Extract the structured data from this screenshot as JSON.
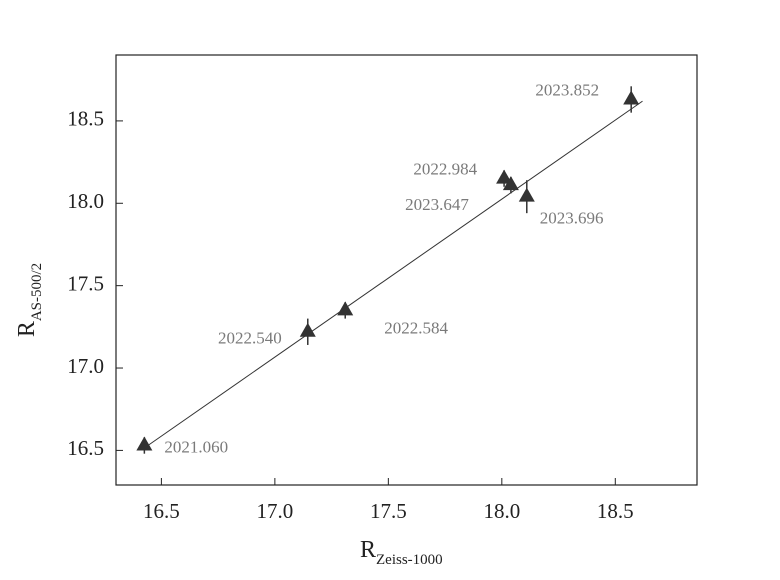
{
  "chart_data": {
    "type": "scatter",
    "xlabel": {
      "main": "R",
      "sub": "Zeiss-1000"
    },
    "ylabel": {
      "main": "R",
      "sub": "AS-500/2"
    },
    "xlim": [
      16.3,
      18.86
    ],
    "ylim": [
      16.29,
      18.9
    ],
    "xticks": [
      16.5,
      {
        "value": 17,
        "label": "17.0"
      },
      17.5,
      {
        "value": 18,
        "label": "18.0"
      },
      18.5
    ],
    "yticks": [
      16.5,
      {
        "value": 17,
        "label": "17.0"
      },
      17.5,
      {
        "value": 18,
        "label": "18.0"
      },
      18.5
    ],
    "series": [
      {
        "color": "#333333",
        "x": [
          16.425,
          17.145,
          17.31,
          18.01,
          18.04,
          18.11,
          18.57
        ],
        "y": [
          16.53,
          17.22,
          17.35,
          18.15,
          18.11,
          18.04,
          18.63
        ],
        "yerr": [
          0.05,
          0.08,
          0.05,
          0.05,
          0.05,
          0.1,
          0.08
        ],
        "labels": [
          "2021.060",
          "2022.540",
          "2022.584",
          "2022.984",
          "2023.647",
          "2023.696",
          "2023.852"
        ]
      }
    ],
    "fit_line": {
      "x": [
        16.42,
        18.62
      ],
      "y": [
        16.51,
        18.62
      ]
    }
  }
}
